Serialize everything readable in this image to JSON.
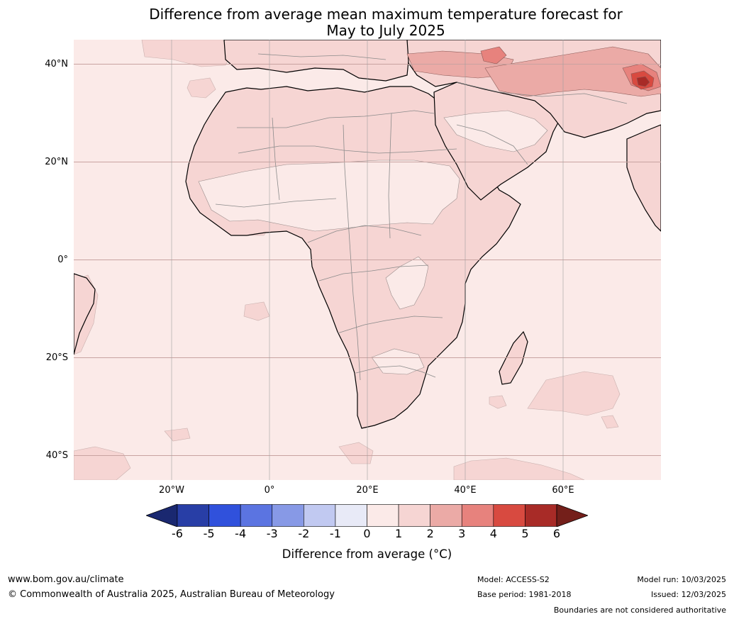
{
  "title": {
    "line1": "Difference from average mean maximum temperature forecast for",
    "line2": "May to July 2025"
  },
  "map": {
    "region": "Africa and Middle East",
    "lat_range": [
      -45,
      45
    ],
    "lon_range": [
      -40,
      80
    ],
    "lat_labels": [
      {
        "lat": 40,
        "text": "40°N"
      },
      {
        "lat": 20,
        "text": "20°N"
      },
      {
        "lat": 0,
        "text": "0°"
      },
      {
        "lat": -20,
        "text": "20°S"
      },
      {
        "lat": -40,
        "text": "40°S"
      }
    ],
    "lon_labels": [
      {
        "lon": -20,
        "text": "20°W"
      },
      {
        "lon": 0,
        "text": "0°"
      },
      {
        "lon": 20,
        "text": "20°E"
      },
      {
        "lon": 40,
        "text": "40°E"
      },
      {
        "lon": 60,
        "text": "60°E"
      }
    ],
    "ocean_color": "#fbeae8",
    "land_base_color": "#fbeae8",
    "anomaly_1_2_color": "#f6d5d3",
    "anomaly_2_3_color": "#ebaaa6",
    "anomaly_3_4_color": "#e7827d",
    "anomaly_4_5_color": "#d84a40",
    "anomaly_5_6_color": "#a82b27"
  },
  "colorbar": {
    "ticks": [
      "-6",
      "-5",
      "-4",
      "-3",
      "-2",
      "-1",
      "0",
      "1",
      "2",
      "3",
      "4",
      "5",
      "6"
    ],
    "colors": [
      "#283ea6",
      "#3051dc",
      "#5b74e1",
      "#8799e6",
      "#c1c9f1",
      "#e8eaf7",
      "#fbeae8",
      "#f6d5d3",
      "#ebaaa6",
      "#e7827d",
      "#d84a40",
      "#a82b27"
    ],
    "under_color": "#1a2870",
    "over_color": "#741f1a",
    "label": "Difference from average (",
    "unit": "°C",
    "label_close": ")"
  },
  "footer": {
    "website": "www.bom.gov.au/climate",
    "copyright": "© Commonwealth of Australia 2025, Australian Bureau of Meteorology",
    "model": "Model: ACCESS-S2",
    "base_period": "Base period: 1981-2018",
    "model_run": "Model run: 10/03/2025",
    "issued": "Issued: 12/03/2025",
    "disclaimer": "Boundaries are not considered authoritative"
  }
}
